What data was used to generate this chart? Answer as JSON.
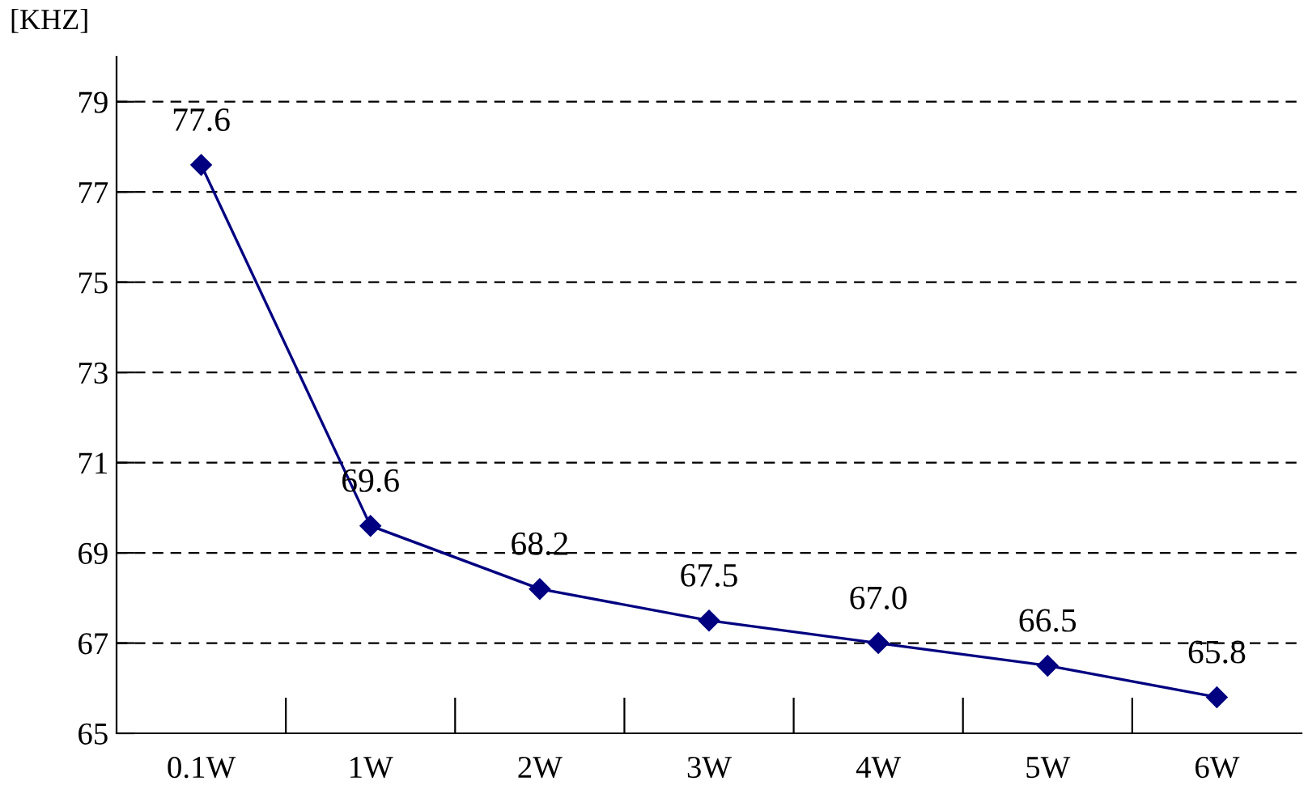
{
  "chart_data": {
    "type": "line",
    "ylabel": "[KHZ]",
    "categories": [
      "0.1W",
      "1W",
      "2W",
      "3W",
      "4W",
      "5W",
      "6W"
    ],
    "series": [
      {
        "color": "#000080",
        "values": [
          77.6,
          69.6,
          68.2,
          67.5,
          67.0,
          66.5,
          65.8
        ]
      }
    ],
    "value_labels": [
      "77.6",
      "69.6",
      "68.2",
      "67.5",
      "67.0",
      "66.5",
      "65.8"
    ],
    "ylim": [
      65,
      80
    ],
    "yticks": [
      65,
      67,
      69,
      71,
      73,
      75,
      77,
      79
    ],
    "grid": "y",
    "marker": "diamond",
    "line_style": "solid",
    "legend": false
  }
}
